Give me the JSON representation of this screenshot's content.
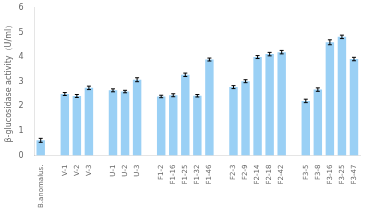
{
  "chart_data": {
    "type": "bar",
    "categories": [
      "B.anomalus.",
      null,
      "V-1",
      "V-2",
      "V-3",
      null,
      "U-1",
      "U-2",
      "U-3",
      null,
      "F1-2",
      "F1-16",
      "F1-25",
      "F1-32",
      "F1-46",
      null,
      "F2-3",
      "F2-9",
      "F2-14",
      "F2-18",
      "F2-42",
      null,
      "F3-5",
      "F3-8",
      "F3-16",
      "F3-25",
      "F3-47"
    ],
    "values": [
      0.62,
      null,
      2.5,
      2.42,
      2.75,
      null,
      2.65,
      2.6,
      3.08,
      null,
      2.4,
      2.45,
      3.28,
      2.43,
      3.9,
      null,
      2.78,
      3.02,
      4.0,
      4.12,
      4.2,
      null,
      2.22,
      2.68,
      4.6,
      4.82,
      3.92
    ],
    "errors": [
      0.08,
      null,
      0.06,
      0.06,
      0.07,
      null,
      0.06,
      0.05,
      0.08,
      null,
      0.05,
      0.06,
      0.07,
      0.05,
      0.06,
      null,
      0.06,
      0.06,
      0.06,
      0.07,
      0.07,
      null,
      0.07,
      0.07,
      0.1,
      0.07,
      0.07
    ],
    "ylabel": "β-glucosidase activity（U/ml）",
    "ylim": [
      0,
      6
    ],
    "yticks": [
      0,
      1,
      2,
      3,
      4,
      5,
      6
    ],
    "grid": false
  }
}
